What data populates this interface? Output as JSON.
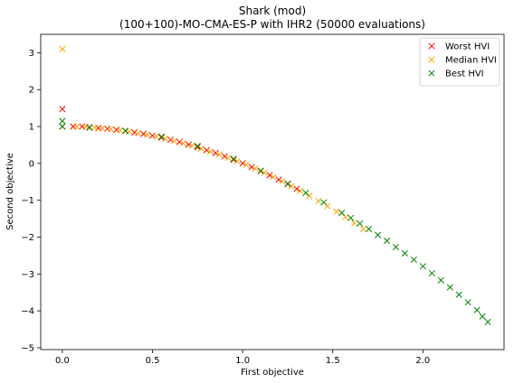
{
  "chart_data": {
    "type": "scatter",
    "title": "Shark (mod)",
    "subtitle": "(100+100)-MO-CMA-ES-P with IHR2 (50000 evaluations)",
    "xlabel": "First objective",
    "ylabel": "Second objective",
    "xlim": [
      -0.12,
      2.45
    ],
    "ylim": [
      -5.05,
      3.5
    ],
    "xticks": [
      0.0,
      0.5,
      1.0,
      1.5,
      2.0
    ],
    "xtick_labels": [
      "0.0",
      "0.5",
      "1.0",
      "1.5",
      "2.0"
    ],
    "yticks": [
      3,
      2,
      1,
      0,
      -1,
      -2,
      -3,
      -4,
      -5
    ],
    "ytick_labels": [
      "3",
      "2",
      "1",
      "0",
      "−1",
      "−2",
      "−3",
      "−4",
      "−5"
    ],
    "grid": false,
    "legend_position": "top-right",
    "marker": "x",
    "series": [
      {
        "name": "Worst HVI",
        "color": "#ff0000",
        "x": [
          0.0,
          0.0,
          0.06,
          0.11,
          0.15,
          0.2,
          0.25,
          0.3,
          0.35,
          0.4,
          0.45,
          0.5,
          0.55,
          0.6,
          0.65,
          0.7,
          0.75,
          0.8,
          0.85,
          0.9,
          0.95,
          1.0,
          1.05,
          1.1,
          1.15,
          1.2,
          1.25,
          1.3
        ],
        "y": [
          1.47,
          1.0,
          1.0,
          1.0,
          0.98,
          0.96,
          0.94,
          0.91,
          0.88,
          0.84,
          0.8,
          0.75,
          0.7,
          0.64,
          0.58,
          0.51,
          0.44,
          0.36,
          0.28,
          0.19,
          0.1,
          0.0,
          -0.1,
          -0.21,
          -0.32,
          -0.44,
          -0.56,
          -0.69
        ]
      },
      {
        "name": "Median HVI",
        "color": "#ffa500",
        "x": [
          0.0,
          0.0,
          0.08,
          0.13,
          0.18,
          0.22,
          0.27,
          0.32,
          0.37,
          0.42,
          0.47,
          0.52,
          0.57,
          0.62,
          0.67,
          0.72,
          0.77,
          0.82,
          0.87,
          0.92,
          0.97,
          1.02,
          1.07,
          1.12,
          1.17,
          1.22,
          1.27,
          1.32,
          1.37,
          1.42,
          1.47,
          1.52,
          1.57,
          1.62,
          1.67
        ],
        "y": [
          3.1,
          1.0,
          1.0,
          0.99,
          0.97,
          0.95,
          0.93,
          0.9,
          0.86,
          0.82,
          0.78,
          0.73,
          0.67,
          0.61,
          0.55,
          0.48,
          0.4,
          0.32,
          0.24,
          0.15,
          0.06,
          -0.04,
          -0.14,
          -0.25,
          -0.37,
          -0.49,
          -0.62,
          -0.75,
          -0.88,
          -1.02,
          -1.16,
          -1.31,
          -1.46,
          -1.62,
          -1.78
        ]
      },
      {
        "name": "Best HVI",
        "color": "#008000",
        "x": [
          0.0,
          0.0,
          0.15,
          0.35,
          0.55,
          0.75,
          0.95,
          1.1,
          1.25,
          1.35,
          1.45,
          1.55,
          1.6,
          1.65,
          1.7,
          1.75,
          1.8,
          1.85,
          1.9,
          1.95,
          2.0,
          2.05,
          2.1,
          2.15,
          2.2,
          2.25,
          2.3,
          2.33,
          2.36
        ],
        "y": [
          1.15,
          1.0,
          0.97,
          0.88,
          0.72,
          0.47,
          0.12,
          -0.2,
          -0.55,
          -0.8,
          -1.06,
          -1.34,
          -1.48,
          -1.63,
          -1.78,
          -1.94,
          -2.1,
          -2.27,
          -2.44,
          -2.61,
          -2.79,
          -2.98,
          -3.17,
          -3.36,
          -3.56,
          -3.77,
          -3.98,
          -4.15,
          -4.3
        ]
      }
    ]
  }
}
